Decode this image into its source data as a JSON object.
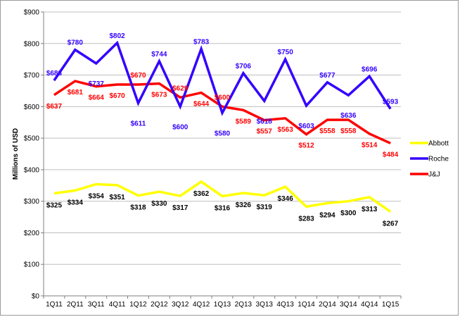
{
  "chart_data": {
    "type": "line",
    "ylabel": "Millions of USD",
    "ylim": [
      0,
      900
    ],
    "y_ticks": [
      "$0",
      "$100",
      "$200",
      "$300",
      "$400",
      "$500",
      "$600",
      "$700",
      "$800",
      "$900"
    ],
    "y_tick_values": [
      0,
      100,
      200,
      300,
      400,
      500,
      600,
      700,
      800,
      900
    ],
    "grid": true,
    "legend_position": "right",
    "categories": [
      "1Q11",
      "2Q11",
      "3Q11",
      "4Q11",
      "1Q12",
      "2Q12",
      "3Q12",
      "4Q12",
      "1Q13",
      "2Q13",
      "3Q13",
      "4Q13",
      "1Q14",
      "2Q14",
      "3Q14",
      "4Q14",
      "1Q15"
    ],
    "series": [
      {
        "name": "Abbott",
        "color": "#ffff00",
        "label_color": "#000000",
        "values": [
          325,
          334,
          354,
          351,
          318,
          330,
          317,
          362,
          316,
          326,
          319,
          346,
          283,
          294,
          300,
          313,
          267
        ],
        "labels": [
          "$325",
          "$334",
          "$354",
          "$351",
          "$318",
          "$330",
          "$317",
          "$362",
          "$316",
          "$326",
          "$319",
          "$346",
          "$283",
          "$294",
          "$300",
          "$313",
          "$267"
        ]
      },
      {
        "name": "Roche",
        "color": "#3300ff",
        "label_color": "#3300ff",
        "values": [
          683,
          780,
          737,
          802,
          611,
          744,
          600,
          783,
          580,
          706,
          618,
          750,
          603,
          677,
          636,
          696,
          593
        ],
        "labels": [
          "$683",
          "$780",
          "$737",
          "$802",
          "$611",
          "$744",
          "$600",
          "$783",
          "$580",
          "$706",
          "$618",
          "$750",
          "$603",
          "$677",
          "$636",
          "$696",
          "$593"
        ]
      },
      {
        "name": "J&J",
        "color": "#ff0000",
        "label_color": "#ff0000",
        "values": [
          637,
          681,
          664,
          670,
          670,
          673,
          629,
          644,
          600,
          589,
          557,
          563,
          512,
          558,
          558,
          514,
          484
        ],
        "labels": [
          "$637",
          "$681",
          "$664",
          "$670",
          "$670",
          "$673",
          "$629",
          "$644",
          "$600",
          "$589",
          "$557",
          "$563",
          "$512",
          "$558",
          "$558",
          "$514",
          "$484"
        ]
      }
    ]
  }
}
